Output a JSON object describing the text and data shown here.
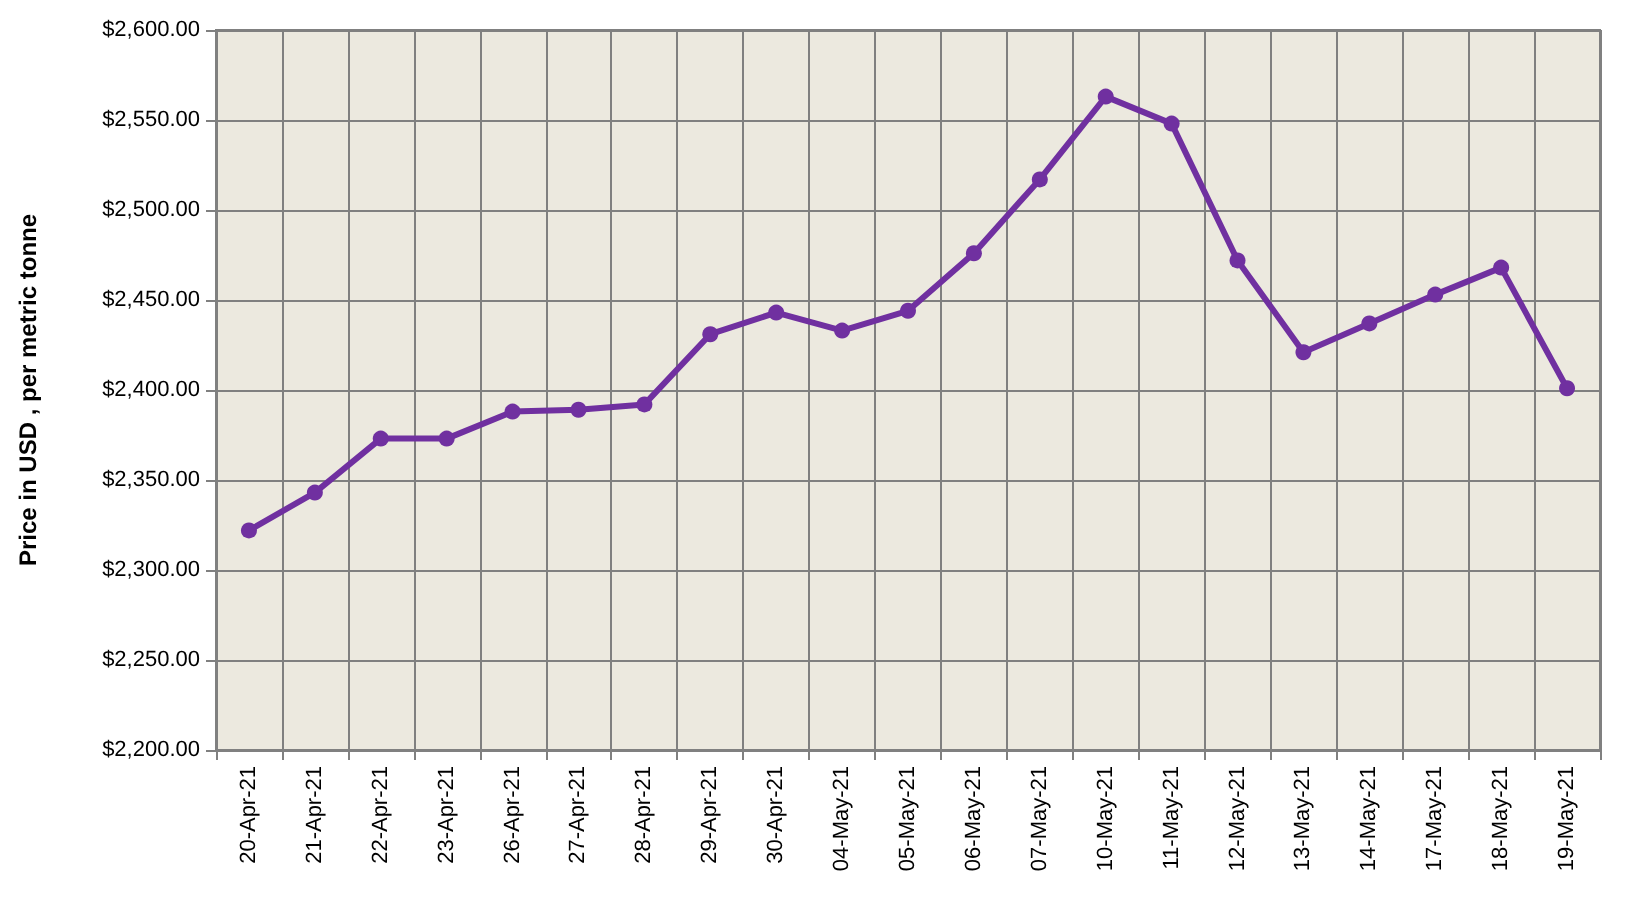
{
  "chart_data": {
    "type": "line",
    "ylabel": "Price in USD , per metric tonne",
    "categories": [
      "20-Apr-21",
      "21-Apr-21",
      "22-Apr-21",
      "23-Apr-21",
      "26-Apr-21",
      "27-Apr-21",
      "28-Apr-21",
      "29-Apr-21",
      "30-Apr-21",
      "04-May-21",
      "05-May-21",
      "06-May-21",
      "07-May-21",
      "10-May-21",
      "11-May-21",
      "12-May-21",
      "13-May-21",
      "14-May-21",
      "17-May-21",
      "18-May-21",
      "19-May-21"
    ],
    "series": [
      {
        "color": "#7030a0",
        "values": [
          2322,
          2343,
          2373,
          2373,
          2388,
          2389,
          2392,
          2431,
          2443,
          2433,
          2444,
          2476,
          2517,
          2563,
          2548,
          2472,
          2421,
          2437,
          2453,
          2468,
          2401
        ]
      }
    ],
    "ylim": [
      2200,
      2600
    ],
    "yticks": [
      {
        "value": 2200,
        "label": "$2,200.00"
      },
      {
        "value": 2250,
        "label": "$2,250.00"
      },
      {
        "value": 2300,
        "label": "$2,300.00"
      },
      {
        "value": 2350,
        "label": "$2,350.00"
      },
      {
        "value": 2400,
        "label": "$2,400.00"
      },
      {
        "value": 2450,
        "label": "$2,450.00"
      },
      {
        "value": 2500,
        "label": "$2,500.00"
      },
      {
        "value": 2550,
        "label": "$2,550.00"
      },
      {
        "value": 2600,
        "label": "$2,600.00"
      }
    ],
    "grid": true,
    "marker": "circle",
    "line_style": "solid"
  }
}
